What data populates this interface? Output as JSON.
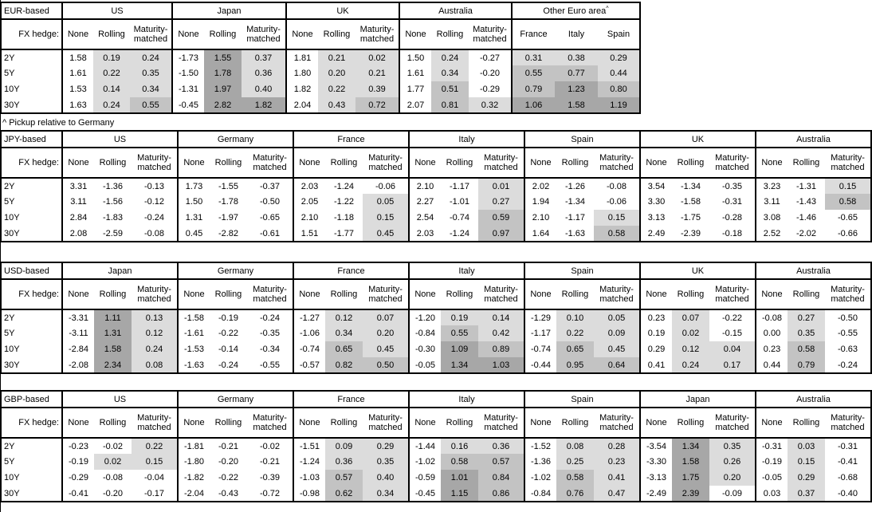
{
  "footnote": "^ Pickup relative to Germany",
  "shared": {
    "fx_hedge_label": "FX hedge:",
    "hedge_columns": [
      "None",
      "Rolling",
      "Maturity-matched"
    ],
    "row_labels": [
      "2Y",
      "5Y",
      "10Y",
      "30Y"
    ]
  },
  "shading": {
    "rule": "heatmap on hedged/pickup columns only; white if value < 0",
    "low_color": "#dcdcdc",
    "mid_color": "#c3c3c3",
    "high_color": "#a7a7a7",
    "low_range": "0 to 0.5",
    "mid_range": "0.5 to 1.0",
    "high_range": ">= 1.0",
    "border_color": "#000000",
    "background_color": "#ffffff"
  },
  "tables": [
    {
      "base": "EUR-based",
      "groups": [
        {
          "name": "US",
          "rows": [
            [
              "1.58",
              "0.19",
              "0.24"
            ],
            [
              "1.61",
              "0.22",
              "0.35"
            ],
            [
              "1.53",
              "0.14",
              "0.34"
            ],
            [
              "1.63",
              "0.24",
              "0.55"
            ]
          ]
        },
        {
          "name": "Japan",
          "rows": [
            [
              "-1.73",
              "1.55",
              "0.37"
            ],
            [
              "-1.50",
              "1.78",
              "0.36"
            ],
            [
              "-1.31",
              "1.97",
              "0.40"
            ],
            [
              "-0.45",
              "2.82",
              "1.82"
            ]
          ]
        },
        {
          "name": "UK",
          "rows": [
            [
              "1.81",
              "0.21",
              "0.02"
            ],
            [
              "1.80",
              "0.20",
              "0.21"
            ],
            [
              "1.82",
              "0.22",
              "0.39"
            ],
            [
              "2.04",
              "0.43",
              "0.72"
            ]
          ]
        },
        {
          "name": "Australia",
          "rows": [
            [
              "1.50",
              "0.24",
              "-0.27"
            ],
            [
              "1.61",
              "0.34",
              "-0.20"
            ],
            [
              "1.77",
              "0.51",
              "-0.29"
            ],
            [
              "2.07",
              "0.81",
              "0.32"
            ]
          ]
        },
        {
          "name": "Other Euro area",
          "footnote_mark": "^",
          "shade_from_col": 0,
          "columns": [
            "France",
            "Italy",
            "Spain"
          ],
          "rows": [
            [
              "0.31",
              "0.38",
              "0.29"
            ],
            [
              "0.55",
              "0.77",
              "0.44"
            ],
            [
              "0.79",
              "1.23",
              "0.80"
            ],
            [
              "1.06",
              "1.58",
              "1.19"
            ]
          ]
        }
      ]
    },
    {
      "base": "JPY-based",
      "groups": [
        {
          "name": "US",
          "rows": [
            [
              "3.31",
              "-1.36",
              "-0.13"
            ],
            [
              "3.11",
              "-1.56",
              "-0.12"
            ],
            [
              "2.84",
              "-1.83",
              "-0.24"
            ],
            [
              "2.08",
              "-2.59",
              "-0.08"
            ]
          ]
        },
        {
          "name": "Germany",
          "rows": [
            [
              "1.73",
              "-1.55",
              "-0.37"
            ],
            [
              "1.50",
              "-1.78",
              "-0.50"
            ],
            [
              "1.31",
              "-1.97",
              "-0.65"
            ],
            [
              "0.45",
              "-2.82",
              "-0.61"
            ]
          ]
        },
        {
          "name": "France",
          "rows": [
            [
              "2.03",
              "-1.24",
              "-0.06"
            ],
            [
              "2.05",
              "-1.22",
              "0.05"
            ],
            [
              "2.10",
              "-1.18",
              "0.15"
            ],
            [
              "1.51",
              "-1.77",
              "0.45"
            ]
          ]
        },
        {
          "name": "Italy",
          "rows": [
            [
              "2.10",
              "-1.17",
              "0.01"
            ],
            [
              "2.27",
              "-1.01",
              "0.27"
            ],
            [
              "2.54",
              "-0.74",
              "0.59"
            ],
            [
              "2.03",
              "-1.24",
              "0.97"
            ]
          ]
        },
        {
          "name": "Spain",
          "rows": [
            [
              "2.02",
              "-1.26",
              "-0.08"
            ],
            [
              "1.94",
              "-1.34",
              "-0.06"
            ],
            [
              "2.10",
              "-1.17",
              "0.15"
            ],
            [
              "1.64",
              "-1.63",
              "0.58"
            ]
          ]
        },
        {
          "name": "UK",
          "rows": [
            [
              "3.54",
              "-1.34",
              "-0.35"
            ],
            [
              "3.30",
              "-1.58",
              "-0.31"
            ],
            [
              "3.13",
              "-1.75",
              "-0.28"
            ],
            [
              "2.49",
              "-2.39",
              "-0.18"
            ]
          ]
        },
        {
          "name": "Australia",
          "rows": [
            [
              "3.23",
              "-1.31",
              "0.15"
            ],
            [
              "3.11",
              "-1.43",
              "0.58"
            ],
            [
              "3.08",
              "-1.46",
              "-0.65"
            ],
            [
              "2.52",
              "-2.02",
              "-0.66"
            ]
          ]
        }
      ]
    },
    {
      "base": "USD-based",
      "groups": [
        {
          "name": "Japan",
          "rows": [
            [
              "-3.31",
              "1.11",
              "0.13"
            ],
            [
              "-3.11",
              "1.31",
              "0.12"
            ],
            [
              "-2.84",
              "1.58",
              "0.24"
            ],
            [
              "-2.08",
              "2.34",
              "0.08"
            ]
          ]
        },
        {
          "name": "Germany",
          "rows": [
            [
              "-1.58",
              "-0.19",
              "-0.24"
            ],
            [
              "-1.61",
              "-0.22",
              "-0.35"
            ],
            [
              "-1.53",
              "-0.14",
              "-0.34"
            ],
            [
              "-1.63",
              "-0.24",
              "-0.55"
            ]
          ]
        },
        {
          "name": "France",
          "rows": [
            [
              "-1.27",
              "0.12",
              "0.07"
            ],
            [
              "-1.06",
              "0.34",
              "0.20"
            ],
            [
              "-0.74",
              "0.65",
              "0.45"
            ],
            [
              "-0.57",
              "0.82",
              "0.50"
            ]
          ]
        },
        {
          "name": "Italy",
          "rows": [
            [
              "-1.20",
              "0.19",
              "0.14"
            ],
            [
              "-0.84",
              "0.55",
              "0.42"
            ],
            [
              "-0.30",
              "1.09",
              "0.89"
            ],
            [
              "-0.05",
              "1.34",
              "1.03"
            ]
          ]
        },
        {
          "name": "Spain",
          "rows": [
            [
              "-1.29",
              "0.10",
              "0.05"
            ],
            [
              "-1.17",
              "0.22",
              "0.09"
            ],
            [
              "-0.74",
              "0.65",
              "0.45"
            ],
            [
              "-0.44",
              "0.95",
              "0.64"
            ]
          ]
        },
        {
          "name": "UK",
          "rows": [
            [
              "0.23",
              "0.07",
              "-0.22"
            ],
            [
              "0.19",
              "0.02",
              "-0.15"
            ],
            [
              "0.29",
              "0.12",
              "0.04"
            ],
            [
              "0.41",
              "0.24",
              "0.17"
            ]
          ]
        },
        {
          "name": "Australia",
          "rows": [
            [
              "-0.08",
              "0.27",
              "-0.50"
            ],
            [
              "0.00",
              "0.35",
              "-0.55"
            ],
            [
              "0.23",
              "0.58",
              "-0.63"
            ],
            [
              "0.44",
              "0.79",
              "-0.24"
            ]
          ]
        }
      ]
    },
    {
      "base": "GBP-based",
      "groups": [
        {
          "name": "US",
          "rows": [
            [
              "-0.23",
              "-0.02",
              "0.22"
            ],
            [
              "-0.19",
              "0.02",
              "0.15"
            ],
            [
              "-0.29",
              "-0.08",
              "-0.04"
            ],
            [
              "-0.41",
              "-0.20",
              "-0.17"
            ]
          ]
        },
        {
          "name": "Germany",
          "rows": [
            [
              "-1.81",
              "-0.21",
              "-0.02"
            ],
            [
              "-1.80",
              "-0.20",
              "-0.21"
            ],
            [
              "-1.82",
              "-0.22",
              "-0.39"
            ],
            [
              "-2.04",
              "-0.43",
              "-0.72"
            ]
          ]
        },
        {
          "name": "France",
          "rows": [
            [
              "-1.51",
              "0.09",
              "0.29"
            ],
            [
              "-1.24",
              "0.36",
              "0.35"
            ],
            [
              "-1.03",
              "0.57",
              "0.40"
            ],
            [
              "-0.98",
              "0.62",
              "0.34"
            ]
          ]
        },
        {
          "name": "Italy",
          "rows": [
            [
              "-1.44",
              "0.16",
              "0.36"
            ],
            [
              "-1.02",
              "0.58",
              "0.57"
            ],
            [
              "-0.59",
              "1.01",
              "0.84"
            ],
            [
              "-0.45",
              "1.15",
              "0.86"
            ]
          ]
        },
        {
          "name": "Spain",
          "rows": [
            [
              "-1.52",
              "0.08",
              "0.28"
            ],
            [
              "-1.36",
              "0.25",
              "0.23"
            ],
            [
              "-1.02",
              "0.58",
              "0.41"
            ],
            [
              "-0.84",
              "0.76",
              "0.47"
            ]
          ]
        },
        {
          "name": "Japan",
          "rows": [
            [
              "-3.54",
              "1.34",
              "0.35"
            ],
            [
              "-3.30",
              "1.58",
              "0.26"
            ],
            [
              "-3.13",
              "1.75",
              "0.20"
            ],
            [
              "-2.49",
              "2.39",
              "-0.09"
            ]
          ]
        },
        {
          "name": "Australia",
          "rows": [
            [
              "-0.31",
              "0.03",
              "-0.31"
            ],
            [
              "-0.19",
              "0.15",
              "-0.41"
            ],
            [
              "-0.05",
              "0.29",
              "-0.68"
            ],
            [
              "0.03",
              "0.37",
              "-0.40"
            ]
          ]
        }
      ]
    }
  ]
}
